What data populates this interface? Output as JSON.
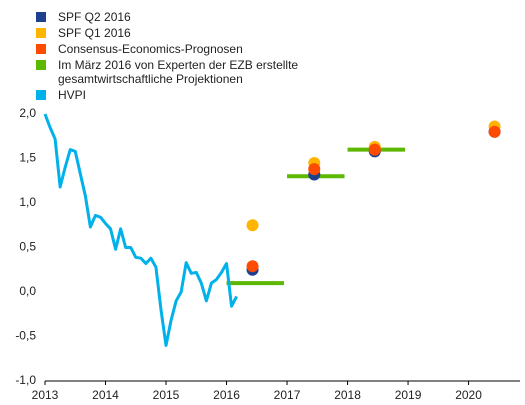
{
  "chart_data": {
    "type": "line",
    "xlim": [
      2013,
      2020.85
    ],
    "xticks": [
      2013,
      2014,
      2015,
      2016,
      2017,
      2018,
      2019,
      2020
    ],
    "ylim": [
      -1,
      2
    ],
    "yticks": [
      {
        "value": 2,
        "label": "2,0"
      },
      {
        "value": 1.5,
        "label": "1,5"
      },
      {
        "value": 1,
        "label": "1,0"
      },
      {
        "value": 0.5,
        "label": "0,5"
      },
      {
        "value": 0,
        "label": "0,0"
      },
      {
        "value": -0.5,
        "label": "-0,5"
      },
      {
        "value": -1,
        "label": "-1,0"
      }
    ],
    "grid": false,
    "series": [
      {
        "name": "SPF Q2 2016",
        "color": "#1f3f8f",
        "type": "scatter",
        "x": [
          2016.43,
          2017.45,
          2018.45,
          2020.43
        ],
        "values": [
          0.25,
          1.32,
          1.58,
          1.8
        ]
      },
      {
        "name": "SPF Q1 2016",
        "color": "#ffb400",
        "type": "scatter",
        "x": [
          2016.43,
          2017.45,
          2018.45,
          2020.43
        ],
        "values": [
          0.75,
          1.45,
          1.63,
          1.86
        ]
      },
      {
        "name": "Consensus-Economics-Prognosen",
        "color": "#ff4b00",
        "type": "scatter",
        "x": [
          2016.43,
          2017.45,
          2018.45,
          2020.43
        ],
        "values": [
          0.29,
          1.38,
          1.6,
          1.8
        ]
      },
      {
        "name": "Im März 2016 von Experten der EZB erstellte gesamtwirtschaftliche Projektionen",
        "color": "#5cb800",
        "type": "line",
        "width": 4,
        "x": [
          2016.0,
          2016.95,
          null,
          2017.0,
          2017.95,
          null,
          2018.0,
          2018.95
        ],
        "values": [
          0.1,
          0.1,
          null,
          1.3,
          1.3,
          null,
          1.6,
          1.6
        ]
      },
      {
        "name": "HVPI",
        "color": "#00b1ea",
        "type": "line",
        "width": 3,
        "x": [
          2013.0,
          2013.083,
          2013.167,
          2013.25,
          2013.333,
          2013.417,
          2013.5,
          2013.583,
          2013.667,
          2013.75,
          2013.833,
          2013.917,
          2014.0,
          2014.083,
          2014.167,
          2014.25,
          2014.333,
          2014.417,
          2014.5,
          2014.583,
          2014.667,
          2014.75,
          2014.833,
          2014.917,
          2015.0,
          2015.083,
          2015.167,
          2015.25,
          2015.333,
          2015.417,
          2015.5,
          2015.583,
          2015.667,
          2015.75,
          2015.833,
          2015.917,
          2016.0,
          2016.083,
          2016.167
        ],
        "values": [
          2.0,
          1.85,
          1.72,
          1.18,
          1.4,
          1.6,
          1.58,
          1.33,
          1.08,
          0.73,
          0.86,
          0.84,
          0.77,
          0.71,
          0.48,
          0.71,
          0.5,
          0.5,
          0.39,
          0.38,
          0.32,
          0.38,
          0.28,
          -0.2,
          -0.6,
          -0.32,
          -0.1,
          0.0,
          0.33,
          0.21,
          0.22,
          0.1,
          -0.1,
          0.1,
          0.14,
          0.22,
          0.32,
          -0.16,
          -0.05
        ]
      }
    ]
  }
}
